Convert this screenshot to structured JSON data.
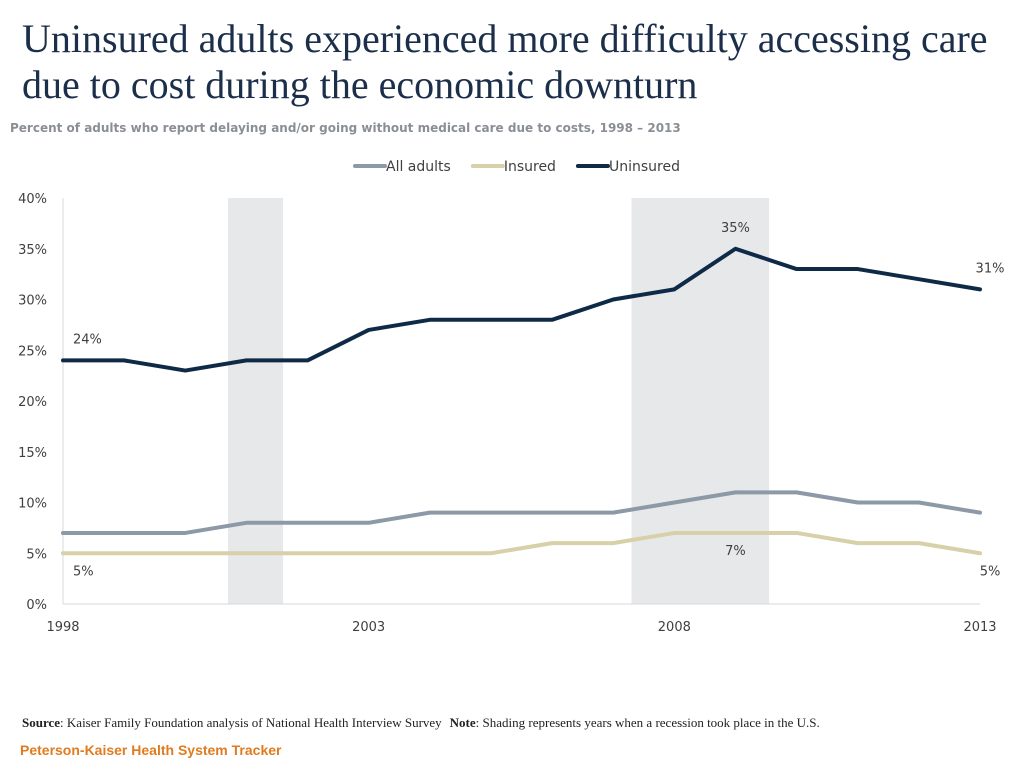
{
  "title": "Uninsured adults experienced more difficulty accessing care due to cost during the economic downturn",
  "subtitle": "Percent of adults who report delaying and/or going without medical care due to costs, 1998 – 2013",
  "chart_data": {
    "type": "line",
    "title": "Uninsured adults experienced more difficulty accessing care due to cost during the economic downturn",
    "subtitle": "Percent of adults who report delaying and/or going without medical care due to costs, 1998 – 2013",
    "x": [
      1998,
      1999,
      2000,
      2001,
      2002,
      2003,
      2004,
      2005,
      2006,
      2007,
      2008,
      2009,
      2010,
      2011,
      2012,
      2013
    ],
    "x_tick_labels": [
      "1998",
      "2003",
      "2008",
      "2013"
    ],
    "x_tick_values": [
      1998,
      2003,
      2008,
      2013
    ],
    "ylim": [
      0,
      40
    ],
    "y_ticks": [
      0,
      5,
      10,
      15,
      20,
      25,
      30,
      35,
      40
    ],
    "y_tick_labels": [
      "0%",
      "5%",
      "10%",
      "15%",
      "20%",
      "25%",
      "30%",
      "35%",
      "40%"
    ],
    "xlabel": "",
    "ylabel": "",
    "grid": false,
    "legend_position": "top-center",
    "series": [
      {
        "name": "All adults",
        "color": "#8c99a6",
        "values": [
          7,
          7,
          7,
          8,
          8,
          8,
          9,
          9,
          9,
          9,
          10,
          11,
          11,
          10,
          10,
          9
        ]
      },
      {
        "name": "Insured",
        "color": "#d8d0a8",
        "values": [
          5,
          5,
          5,
          5,
          5,
          5,
          5,
          5,
          6,
          6,
          7,
          7,
          7,
          6,
          6,
          5
        ]
      },
      {
        "name": "Uninsured",
        "color": "#0e2a47",
        "values": [
          24,
          24,
          23,
          24,
          24,
          27,
          28,
          28,
          28,
          30,
          31,
          35,
          33,
          33,
          32,
          31
        ]
      }
    ],
    "shaded_ranges": [
      {
        "label": "recession",
        "from": 2000.7,
        "to": 2001.6,
        "color": "#e6e8ea"
      },
      {
        "label": "recession",
        "from": 2007.3,
        "to": 2009.55,
        "color": "#e6e8ea"
      }
    ],
    "annotations": [
      {
        "text": "24%",
        "x": 1998,
        "y": 24,
        "series": "Uninsured",
        "position": "above"
      },
      {
        "text": "35%",
        "x": 2009,
        "y": 35,
        "series": "Uninsured",
        "position": "above"
      },
      {
        "text": "31%",
        "x": 2013,
        "y": 31,
        "series": "Uninsured",
        "position": "above"
      },
      {
        "text": "5%",
        "x": 1998,
        "y": 5,
        "series": "Insured",
        "position": "below"
      },
      {
        "text": "7%",
        "x": 2009,
        "y": 7,
        "series": "Insured",
        "position": "below"
      },
      {
        "text": "5%",
        "x": 2013,
        "y": 5,
        "series": "Insured",
        "position": "below"
      }
    ]
  },
  "footer": {
    "source_label": "Source",
    "source_text": ": Kaiser Family Foundation analysis of National Health Interview Survey",
    "note_label": "Note",
    "note_text": ": Shading represents years when a recession took place in the U.S."
  },
  "brand": {
    "text": "Peterson-Kaiser Health System Tracker",
    "color": "#e07b1f"
  }
}
